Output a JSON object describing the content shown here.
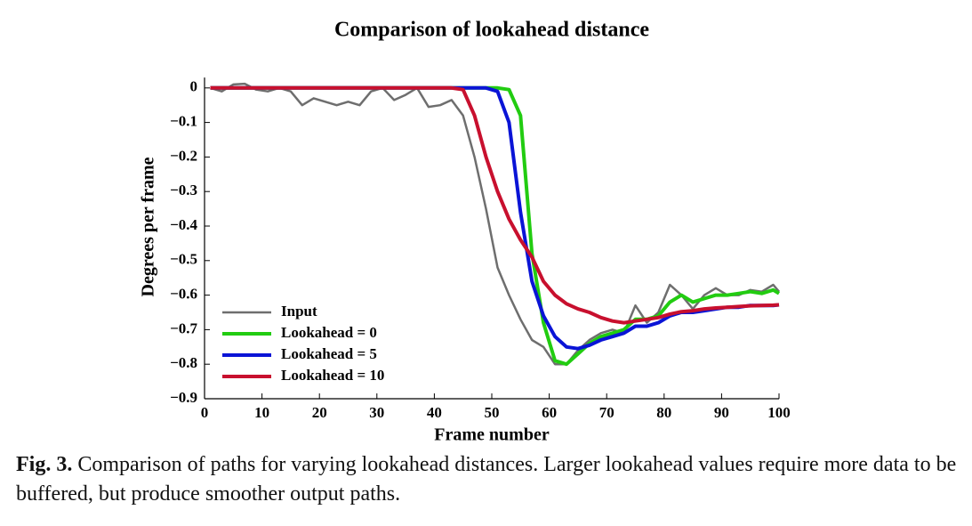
{
  "chart_data": {
    "type": "line",
    "title": "Comparison of lookahead distance",
    "x_label": "Frame number",
    "y_label": "Degrees per frame",
    "x": [
      1,
      3,
      5,
      7,
      9,
      11,
      13,
      15,
      17,
      19,
      21,
      23,
      25,
      27,
      29,
      31,
      33,
      35,
      37,
      39,
      41,
      43,
      45,
      47,
      49,
      51,
      53,
      55,
      57,
      59,
      61,
      63,
      65,
      67,
      69,
      71,
      73,
      75,
      77,
      79,
      81,
      83,
      85,
      87,
      89,
      91,
      93,
      95,
      97,
      99,
      100
    ],
    "series": [
      {
        "name": "Input",
        "color": "#6e6e6e",
        "values": [
          0,
          -0.01,
          0.01,
          0.012,
          -0.005,
          -0.01,
          0,
          -0.01,
          -0.05,
          -0.03,
          -0.04,
          -0.05,
          -0.04,
          -0.05,
          -0.01,
          0,
          -0.035,
          -0.02,
          0,
          -0.055,
          -0.05,
          -0.035,
          -0.08,
          -0.2,
          -0.35,
          -0.52,
          -0.6,
          -0.67,
          -0.73,
          -0.75,
          -0.8,
          -0.8,
          -0.76,
          -0.73,
          -0.71,
          -0.7,
          -0.71,
          -0.63,
          -0.68,
          -0.65,
          -0.57,
          -0.6,
          -0.64,
          -0.6,
          -0.58,
          -0.6,
          -0.6,
          -0.585,
          -0.59,
          -0.57,
          -0.59
        ]
      },
      {
        "name": "Lookahead = 0",
        "color": "#22cc11",
        "values": [
          0,
          0,
          0,
          0,
          0,
          0,
          0,
          0,
          0,
          0,
          0,
          0,
          0,
          0,
          0,
          0,
          0,
          0,
          0,
          0,
          0,
          0,
          0,
          0,
          0,
          0,
          -0.005,
          -0.08,
          -0.48,
          -0.68,
          -0.79,
          -0.8,
          -0.77,
          -0.74,
          -0.72,
          -0.71,
          -0.7,
          -0.67,
          -0.67,
          -0.66,
          -0.62,
          -0.6,
          -0.62,
          -0.61,
          -0.6,
          -0.6,
          -0.595,
          -0.59,
          -0.595,
          -0.585,
          -0.595
        ]
      },
      {
        "name": "Lookahead = 5",
        "color": "#0a14d6",
        "values": [
          0,
          0,
          0,
          0,
          0,
          0,
          0,
          0,
          0,
          0,
          0,
          0,
          0,
          0,
          0,
          0,
          0,
          0,
          0,
          0,
          0,
          0,
          0,
          0,
          0,
          -0.01,
          -0.1,
          -0.36,
          -0.56,
          -0.66,
          -0.72,
          -0.75,
          -0.755,
          -0.745,
          -0.73,
          -0.72,
          -0.71,
          -0.69,
          -0.69,
          -0.68,
          -0.66,
          -0.65,
          -0.65,
          -0.645,
          -0.64,
          -0.635,
          -0.635,
          -0.63,
          -0.63,
          -0.63,
          -0.628
        ]
      },
      {
        "name": "Lookahead = 10",
        "color": "#c8102e",
        "values": [
          0,
          0,
          0,
          0,
          0,
          0,
          0,
          0,
          0,
          0,
          0,
          0,
          0,
          0,
          0,
          0,
          0,
          0,
          0,
          0,
          0,
          0,
          -0.005,
          -0.08,
          -0.2,
          -0.3,
          -0.38,
          -0.44,
          -0.49,
          -0.56,
          -0.6,
          -0.625,
          -0.64,
          -0.65,
          -0.665,
          -0.675,
          -0.68,
          -0.675,
          -0.67,
          -0.665,
          -0.655,
          -0.648,
          -0.645,
          -0.64,
          -0.637,
          -0.635,
          -0.633,
          -0.631,
          -0.63,
          -0.629,
          -0.628
        ]
      }
    ],
    "xlim": [
      0,
      100
    ],
    "xticks": [
      0,
      10,
      20,
      30,
      40,
      50,
      60,
      70,
      80,
      90,
      100
    ],
    "ylim": [
      -0.9,
      0.03
    ],
    "yticks": [
      0,
      {
        "value": -0.1,
        "label": "−0.1"
      },
      {
        "value": -0.2,
        "label": "−0.2"
      },
      {
        "value": -0.3,
        "label": "−0.3"
      },
      {
        "value": -0.4,
        "label": "−0.4"
      },
      {
        "value": -0.5,
        "label": "−0.5"
      },
      {
        "value": -0.6,
        "label": "−0.6"
      },
      {
        "value": -0.7,
        "label": "−0.7"
      },
      {
        "value": -0.8,
        "label": "−0.8"
      },
      {
        "value": -0.9,
        "label": "−0.9"
      }
    ],
    "legend": "lower left"
  },
  "caption": {
    "label": "Fig. 3.",
    "text": "Comparison of paths for varying lookahead distances. Larger lookahead values require more data to be buffered, but produce smoother output paths."
  }
}
